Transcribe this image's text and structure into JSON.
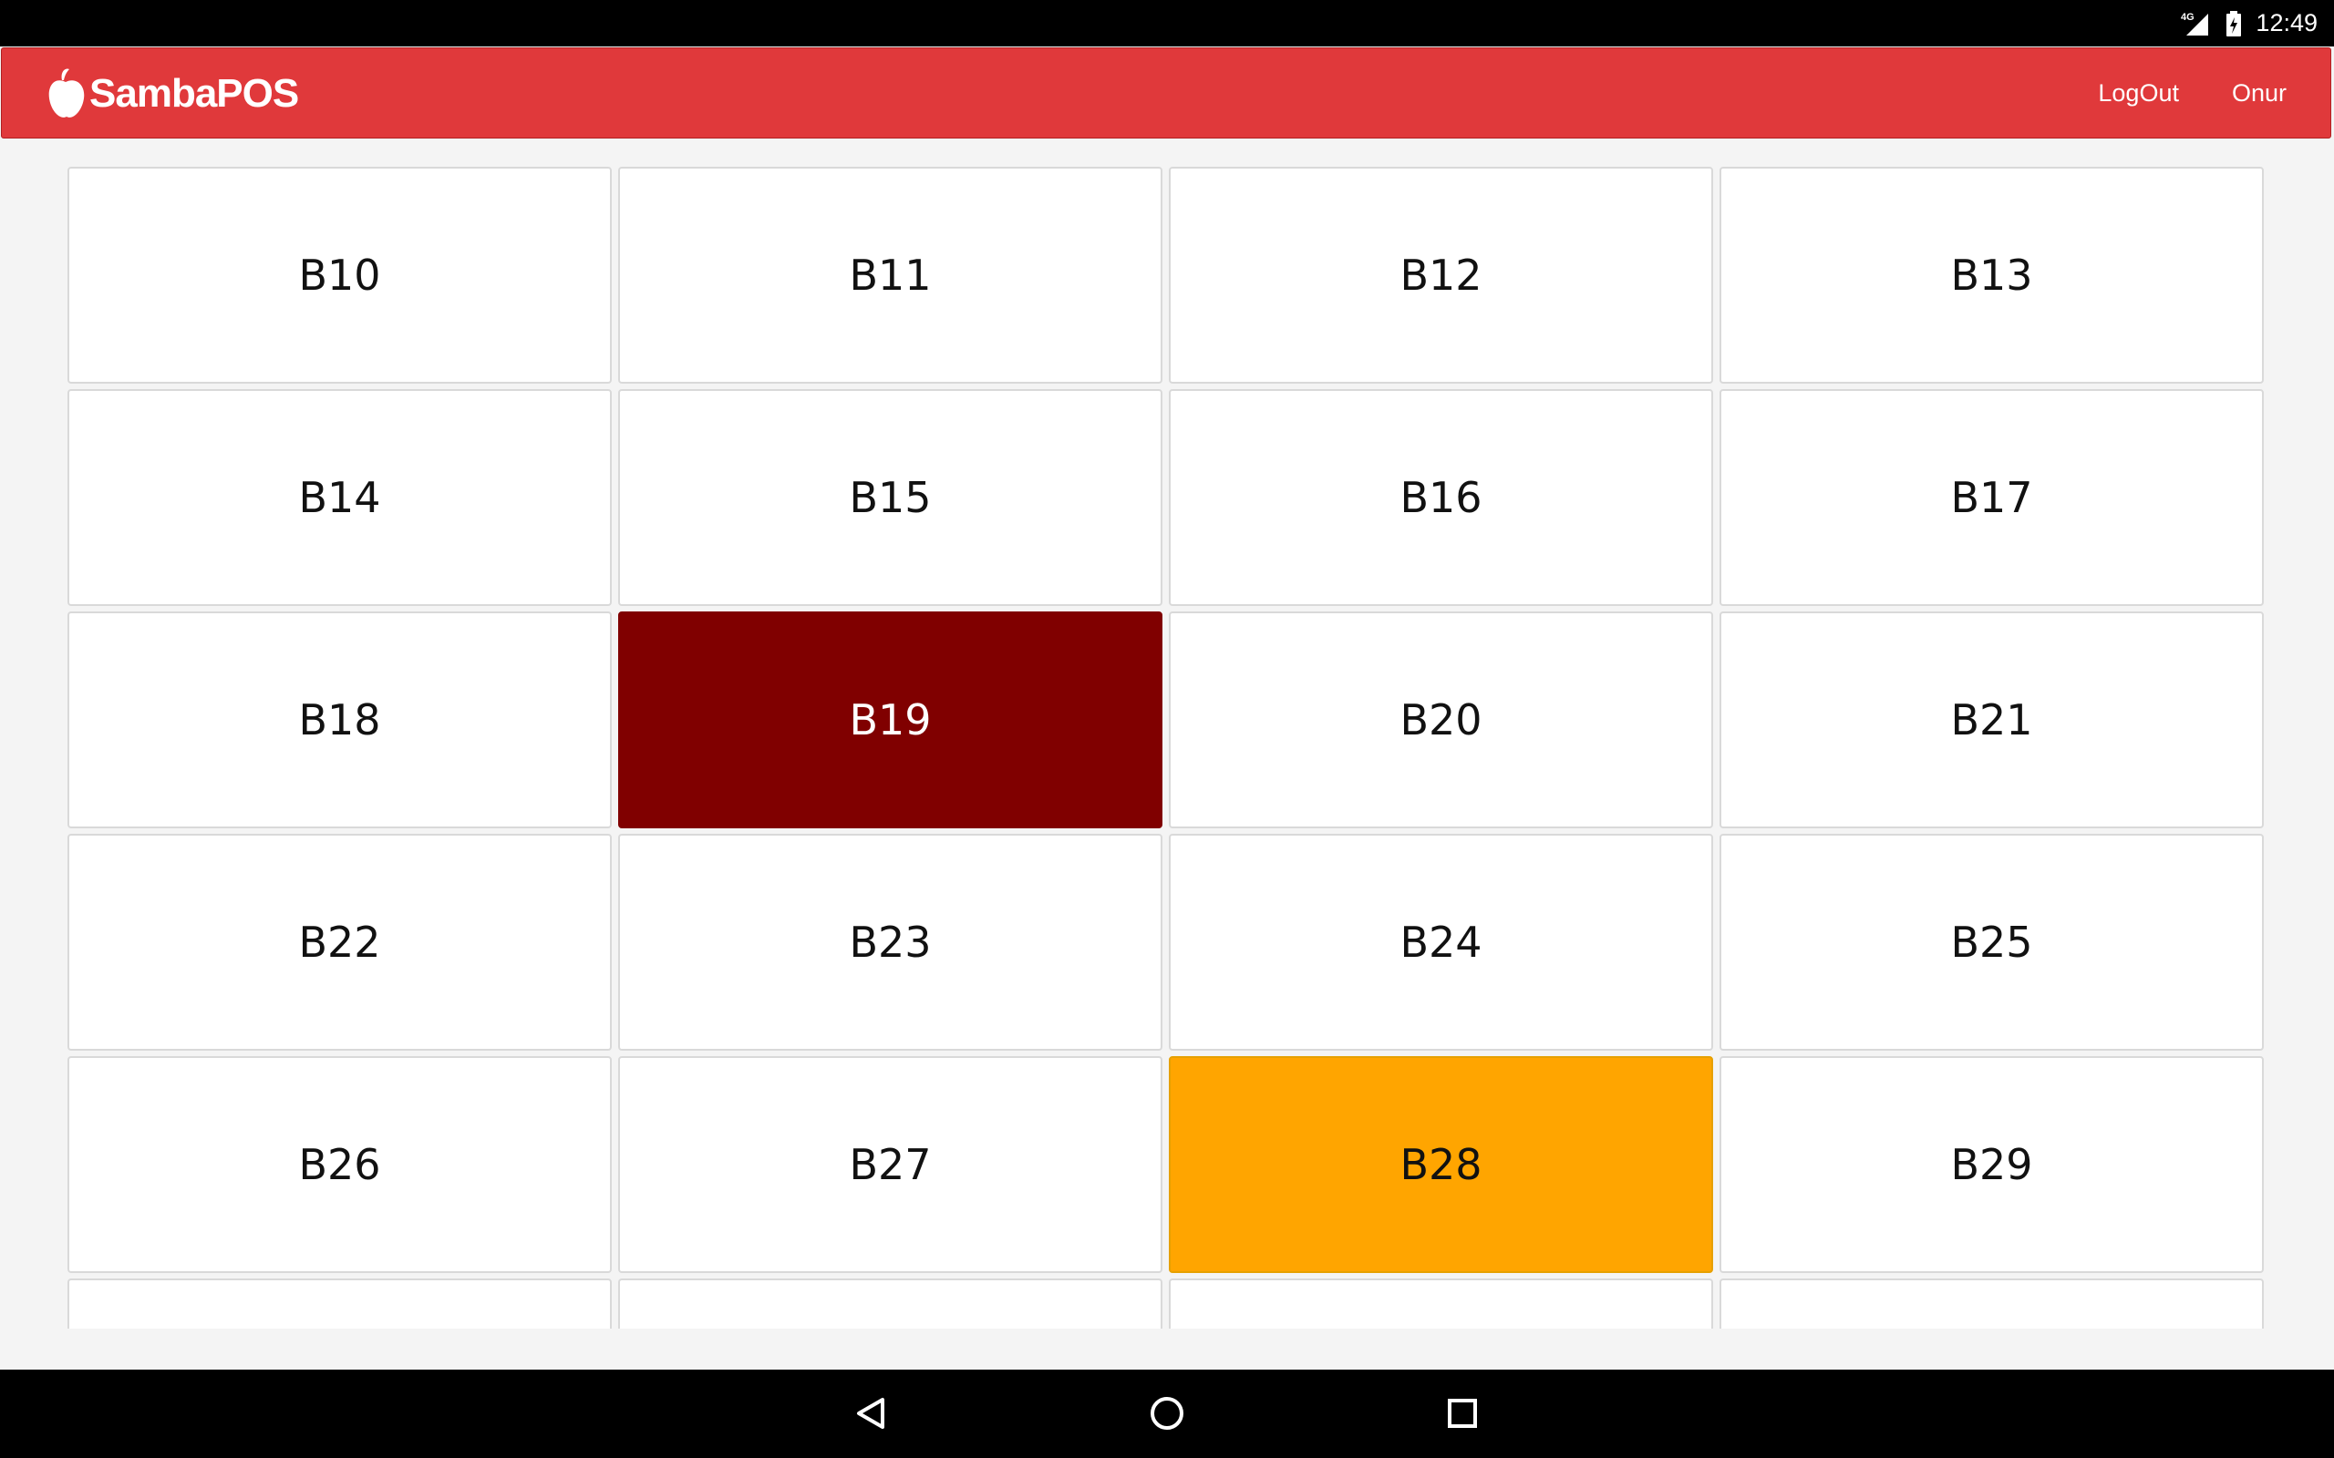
{
  "status_bar": {
    "network": "4G",
    "time": "12:49"
  },
  "header": {
    "logo_text": "SambaPOS",
    "logout_label": "LogOut",
    "user_label": "Onur",
    "color": "#e0393b"
  },
  "tiles": [
    {
      "label": "B10",
      "state": "free"
    },
    {
      "label": "B11",
      "state": "free"
    },
    {
      "label": "B12",
      "state": "free"
    },
    {
      "label": "B13",
      "state": "free"
    },
    {
      "label": "B14",
      "state": "free"
    },
    {
      "label": "B15",
      "state": "free"
    },
    {
      "label": "B16",
      "state": "free"
    },
    {
      "label": "B17",
      "state": "free"
    },
    {
      "label": "B18",
      "state": "free"
    },
    {
      "label": "B19",
      "state": "occupied",
      "color": "#800000"
    },
    {
      "label": "B20",
      "state": "free"
    },
    {
      "label": "B21",
      "state": "free"
    },
    {
      "label": "B22",
      "state": "free"
    },
    {
      "label": "B23",
      "state": "free"
    },
    {
      "label": "B24",
      "state": "free"
    },
    {
      "label": "B25",
      "state": "free"
    },
    {
      "label": "B26",
      "state": "free"
    },
    {
      "label": "B27",
      "state": "free"
    },
    {
      "label": "B28",
      "state": "pending",
      "color": "#ffa500"
    },
    {
      "label": "B29",
      "state": "free"
    },
    {
      "label": "",
      "state": "free"
    },
    {
      "label": "",
      "state": "free"
    },
    {
      "label": "",
      "state": "free"
    },
    {
      "label": "",
      "state": "free"
    }
  ],
  "nav": {
    "back_icon": "back-triangle-icon",
    "home_icon": "home-circle-icon",
    "recents_icon": "recents-square-icon"
  }
}
